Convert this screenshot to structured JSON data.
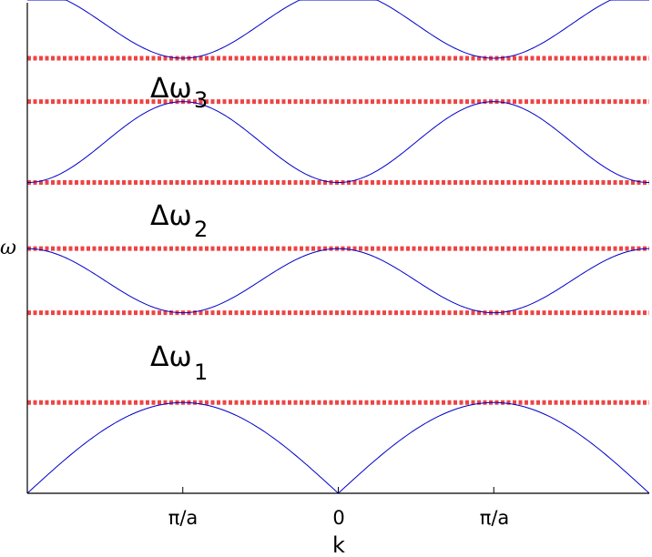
{
  "chart_data": {
    "type": "line",
    "title": "",
    "xlabel": "k",
    "ylabel": "ω",
    "x_tick_labels": [
      "π/a",
      "0",
      "π/a"
    ],
    "x_range": [
      -2,
      2
    ],
    "y_range": [
      0,
      1
    ],
    "band_color": "#0000cc",
    "gap_line_color": "#ee4444",
    "band_edges": [
      {
        "top": 0.184,
        "bottom": 0.0
      },
      {
        "top": 0.496,
        "bottom": 0.366
      },
      {
        "top": 0.794,
        "bottom": 0.63
      },
      {
        "top": 1.02,
        "bottom": 0.882
      }
    ],
    "gap_lines": [
      0.184,
      0.366,
      0.496,
      0.63,
      0.794,
      0.882
    ],
    "gap_labels": [
      {
        "symbol": "Δω",
        "subscript": "3"
      },
      {
        "symbol": "Δω",
        "subscript": "2"
      },
      {
        "symbol": "Δω",
        "subscript": "1"
      }
    ]
  }
}
